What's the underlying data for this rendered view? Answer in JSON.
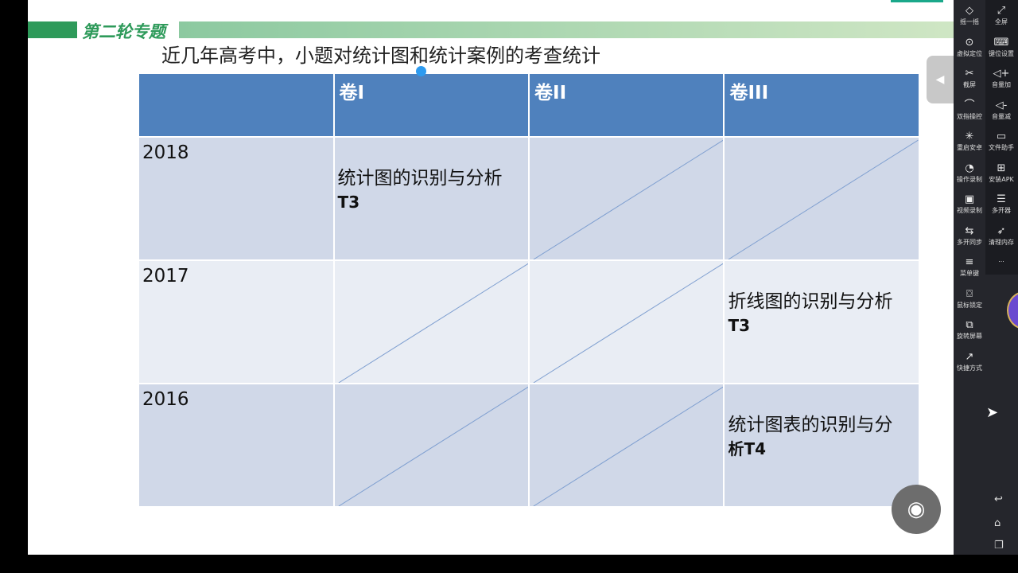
{
  "slide": {
    "logo": "第二轮专题",
    "title": "近几年高考中，小题对统计图和统计案例的考查统计"
  },
  "table": {
    "headers": [
      "",
      "卷I",
      "卷II",
      "卷III"
    ],
    "rows": [
      {
        "year": "2018",
        "cells": [
          {
            "text": "统计图的识别与分析",
            "tag": "T3"
          },
          null,
          null
        ]
      },
      {
        "year": "2017",
        "cells": [
          null,
          null,
          {
            "text": "折线图的识别与分析",
            "tag": "T3"
          }
        ]
      },
      {
        "year": "2016",
        "cells": [
          null,
          null,
          {
            "text": "统计图表的识别与分",
            "tag": "析T4"
          }
        ]
      }
    ]
  },
  "sidebar": {
    "items": [
      {
        "label": "摇一摇",
        "icon": "shake-icon"
      },
      {
        "label": "全屏",
        "icon": "fullscreen-icon"
      },
      {
        "label": "虚拟定位",
        "icon": "location-icon"
      },
      {
        "label": "键位设置",
        "icon": "keyboard-icon"
      },
      {
        "label": "截屏",
        "icon": "scissors-icon"
      },
      {
        "label": "音量加",
        "icon": "volume-up-icon"
      },
      {
        "label": "双指操控",
        "icon": "fingerprint-icon"
      },
      {
        "label": "音量减",
        "icon": "volume-down-icon"
      },
      {
        "label": "重启安卓",
        "icon": "restart-icon"
      },
      {
        "label": "文件助手",
        "icon": "monitor-icon"
      },
      {
        "label": "操作录制",
        "icon": "record-icon"
      },
      {
        "label": "安装APK",
        "icon": "apk-icon"
      },
      {
        "label": "视频录制",
        "icon": "video-icon"
      },
      {
        "label": "多开器",
        "icon": "multi-icon"
      },
      {
        "label": "多开同步",
        "icon": "sync-icon"
      },
      {
        "label": "清理内存",
        "icon": "rocket-icon"
      },
      {
        "label": "菜单键",
        "icon": "menu-icon"
      },
      {
        "label": "...",
        "icon": "more-icon"
      },
      {
        "label": "鼠标锁定",
        "icon": "mouse-lock-icon"
      },
      {
        "label": "旋转屏幕",
        "icon": "rotate-icon"
      },
      {
        "label": "快捷方式",
        "icon": "shortcut-icon"
      }
    ]
  }
}
